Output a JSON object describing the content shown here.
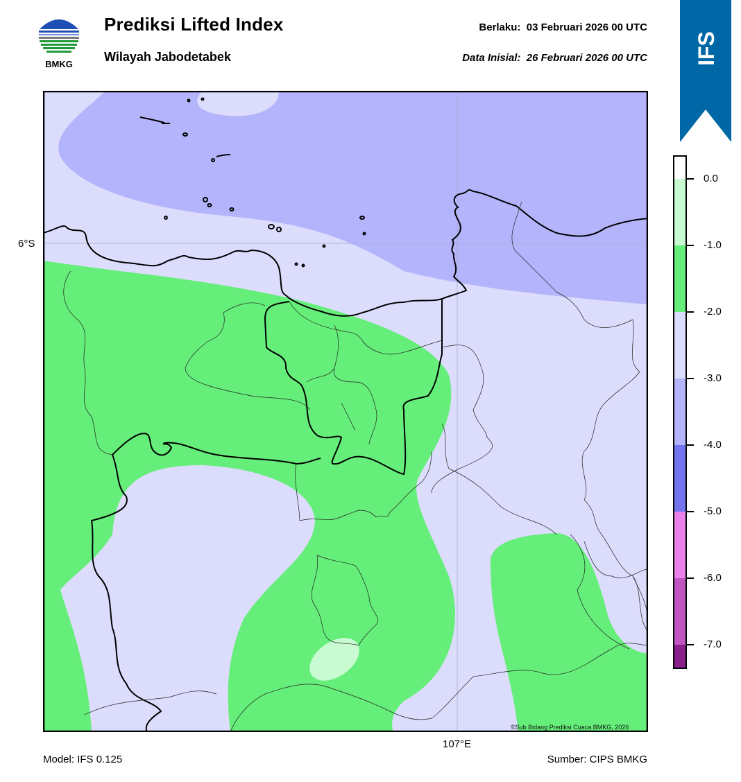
{
  "header": {
    "logo_text": "BMKG",
    "title": "Prediksi Lifted Index",
    "subtitle": "Wilayah Jabodetabek",
    "valid_label": "Berlaku:",
    "valid_value": "03 Februari 2026 00 UTC",
    "init_label": "Data Inisial:",
    "init_value": "26 Februari 2026 00 UTC"
  },
  "map": {
    "lat_label": "6°S",
    "lon_label": "107°E",
    "copyright": "©Sub Bidang Prediksi Cuaca BMKG, 2026"
  },
  "footer": {
    "model": "Model: IFS 0.125",
    "source": "Sumber: CIPS BMKG"
  },
  "banner": {
    "text": "IFS",
    "color": "#0067a6"
  },
  "colorbar": {
    "ticks": [
      "0.0",
      "-1.0",
      "-2.0",
      "-3.0",
      "-4.0",
      "-5.0",
      "-6.0",
      "-7.0"
    ],
    "colors": [
      "#ffffff",
      "#c8fbd2",
      "#65ee79",
      "#dcdcfd",
      "#b4b4fd",
      "#7474ee",
      "#ea82ea",
      "#c155c1",
      "#8b1f8b"
    ]
  }
}
